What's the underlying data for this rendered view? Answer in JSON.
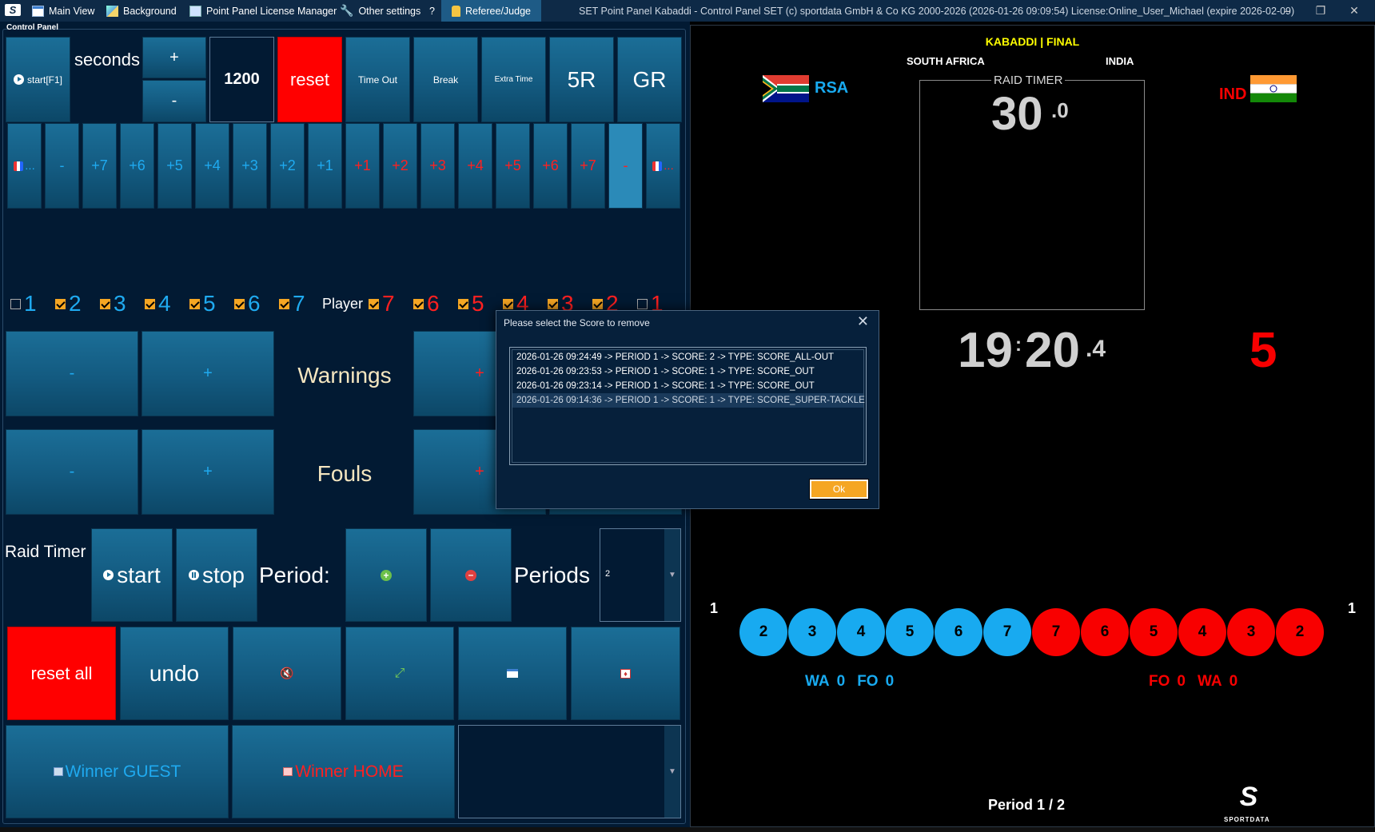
{
  "titlebar": {
    "menu": [
      "Main View",
      "Background",
      "Point Panel License Manager",
      "Other settings",
      "?"
    ],
    "referee": "Referee/Judge",
    "title": "SET Point Panel Kabaddi - Control Panel SET (c) sportdata GmbH & Co KG 2000-2026 (2026-01-26 09:09:54) License:Online_User_Michael (expire 2026-02-09)"
  },
  "panel": {
    "label": "Control Panel",
    "start": "start[F1]",
    "seconds": "seconds",
    "plus": "+",
    "minus": "-",
    "time_value": "1200",
    "reset": "reset",
    "timeout": "Time Out",
    "break": "Break",
    "extra_time": "Extra Time",
    "5r": "5R",
    "gr": "GR",
    "score_buttons": [
      "-",
      "+7",
      "+6",
      "+5",
      "+4",
      "+3",
      "+2",
      "+1",
      "+1",
      "+2",
      "+3",
      "+4",
      "+5",
      "+6",
      "+7",
      "-"
    ],
    "ellipsis": "...",
    "players_left": [
      "1",
      "2",
      "3",
      "4",
      "5",
      "6",
      "7"
    ],
    "players_left_checked": [
      false,
      true,
      true,
      true,
      true,
      true,
      true
    ],
    "player_label": "Player",
    "players_right": [
      "7",
      "6",
      "5",
      "4",
      "3",
      "2",
      "1"
    ],
    "players_right_checked": [
      true,
      true,
      true,
      true,
      true,
      true,
      false
    ],
    "warnings": "Warnings",
    "fouls": "Fouls",
    "raid_timer": "Raid Timer",
    "start2": "start",
    "stop": "stop",
    "period": "Period:",
    "periods": "Periods",
    "periods_value": "2",
    "reset_all": "reset all",
    "undo": "undo",
    "winner_guest": "Winner GUEST",
    "winner_home": "Winner HOME"
  },
  "board": {
    "header": "KABADDI | FINAL",
    "team_left": "SOUTH AFRICA",
    "team_right": "INDIA",
    "code_left": "RSA",
    "code_right": "IND",
    "raid_label": "RAID TIMER",
    "raid_main": "30",
    "raid_dec": ".0",
    "clock_min": "19",
    "clock_sep": ":",
    "clock_sec": "20",
    "clock_dec": ".4",
    "score_right": "5",
    "end_left": "1",
    "end_right": "1",
    "circles_blue": [
      "2",
      "3",
      "4",
      "5",
      "6",
      "7"
    ],
    "circles_red": [
      "7",
      "6",
      "5",
      "4",
      "3",
      "2"
    ],
    "stats_left": [
      "WA",
      "0",
      "FO",
      "0"
    ],
    "stats_right": [
      "FO",
      "0",
      "WA",
      "0"
    ],
    "period_text": "Period 1 / 2",
    "brand": "SPORTDATA"
  },
  "dialog": {
    "title": "Please select the Score to remove",
    "items": [
      "2026-01-26 09:24:49  ->  PERIOD 1  ->  SCORE: 2  ->  TYPE: SCORE_ALL-OUT",
      "2026-01-26 09:23:53  ->  PERIOD 1  ->  SCORE: 1  ->  TYPE: SCORE_OUT",
      "2026-01-26 09:23:14  ->  PERIOD 1  ->  SCORE: 1  ->  TYPE: SCORE_OUT",
      "2026-01-26 09:14:36  ->  PERIOD 1  ->  SCORE: 1  ->  TYPE: SCORE_SUPER-TACKLE"
    ],
    "ok": "Ok"
  },
  "colors": {
    "home_blue": "#18aaf0",
    "guest_red": "#f80000",
    "panel_bg": "#021a33",
    "button": "#135a80",
    "accent": "#f5a623",
    "header_yellow": "#ffff00"
  },
  "icons": [
    "sportdata-logo-icon",
    "window-icon",
    "image-icon",
    "license-icon",
    "wrench-icon",
    "judge-icon",
    "minimize-icon",
    "maximize-icon",
    "close-icon",
    "play-icon",
    "pause-icon",
    "plus-circle-icon",
    "minus-circle-icon",
    "mute-icon",
    "fullscreen-icon",
    "screen-icon",
    "card-icon",
    "flag-icon"
  ]
}
